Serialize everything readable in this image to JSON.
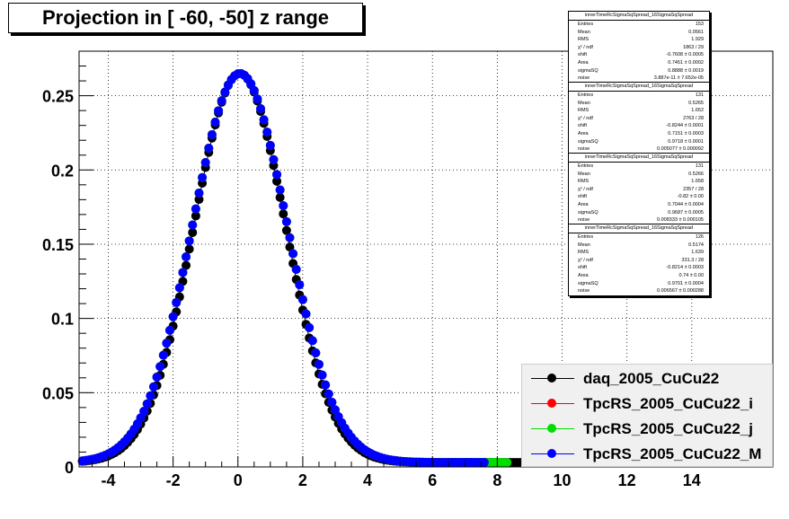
{
  "title": "Projection in [ -60, -50] z range",
  "chart_data": {
    "type": "scatter",
    "xlim": [
      -4.9,
      16.5
    ],
    "ylim": [
      0,
      0.28
    ],
    "x_ticks": [
      -4,
      -2,
      0,
      2,
      4,
      6,
      8,
      10,
      12,
      14
    ],
    "x_tick_labels": [
      "-4",
      "-2",
      "0",
      "2",
      "4",
      "6",
      "8",
      "10",
      "12",
      "14"
    ],
    "y_ticks": [
      0,
      0.05,
      0.1,
      0.15,
      0.2,
      0.25
    ],
    "y_tick_labels": [
      "0",
      "0.05",
      "0.1",
      "0.15",
      "0.2",
      "0.25"
    ],
    "grid": true,
    "legend_position": "bottom-right",
    "series": [
      {
        "name": "daq_2005_CuCu22",
        "color": "#000000",
        "mean": 0.0561,
        "sigma": 1.42,
        "peak": 0.265,
        "x_start": -4.8,
        "x_end": 9.4,
        "step": 0.1
      },
      {
        "name": "TpcRS_2005_CuCu22_i",
        "color": "#ff0000",
        "mean": 0.06,
        "sigma": 1.47,
        "peak": 0.265,
        "x_start": -4.8,
        "x_end": 7.6,
        "step": 0.1
      },
      {
        "name": "TpcRS_2005_CuCu22_j",
        "color": "#00dd00",
        "mean": 0.06,
        "sigma": 1.47,
        "peak": 0.265,
        "x_start": -4.8,
        "x_end": 8.3,
        "step": 0.1
      },
      {
        "name": "TpcRS_2005_CuCu22_M",
        "color": "#0000ff",
        "mean": 0.06,
        "sigma": 1.47,
        "peak": 0.265,
        "x_start": -4.8,
        "x_end": 7.6,
        "step": 0.1
      }
    ]
  },
  "stats_boxes": [
    {
      "title": "innerTimeRcSigmaSqSpread_16SigmaSqSpread",
      "rows": [
        [
          "Entries",
          "153"
        ],
        [
          "Mean",
          "0.0561"
        ],
        [
          "RMS",
          "1.929"
        ],
        [
          "χ² / ndf",
          "1863 / 29"
        ],
        [
          "shift",
          "-0.7608 ± 0.0005"
        ],
        [
          "Area",
          "0.7451 ± 0.0002"
        ],
        [
          "sigmaSQ",
          "0.8888 ± 0.0019"
        ],
        [
          "noise",
          "3.887e-11 ± 7.652e-05"
        ]
      ]
    },
    {
      "title": "innerTimeRcSigmaSqSpread_16SigmaSqSpread",
      "rows": [
        [
          "Entries",
          "131"
        ],
        [
          "Mean",
          "0.5265"
        ],
        [
          "RMS",
          "1.652"
        ],
        [
          "χ² / ndf",
          "2763 / 28"
        ],
        [
          "shift",
          "-0.8244 ± 0.0001"
        ],
        [
          "Area",
          "0.7151 ± 0.0003"
        ],
        [
          "sigmaSQ",
          "0.9718 ± 0.0001"
        ],
        [
          "noise",
          "0.005077 ± 0.000092"
        ]
      ]
    },
    {
      "title": "innerTimeRcSigmaSqSpread_16SigmaSqSpread",
      "rows": [
        [
          "Entries",
          "131"
        ],
        [
          "Mean",
          "0.5266"
        ],
        [
          "RMS",
          "1.658"
        ],
        [
          "χ² / ndf",
          "2357 / 28"
        ],
        [
          "shift",
          "-0.82 ± 0.00"
        ],
        [
          "Area",
          "0.7044 ± 0.0004"
        ],
        [
          "sigmaSQ",
          "0.9687 ± 0.0005"
        ],
        [
          "noise",
          "0.008333 ± 0.000105"
        ]
      ]
    },
    {
      "title": "innerTimeRcSigmaSqSpread_16SigmaSqSpread",
      "rows": [
        [
          "Entries",
          "126"
        ],
        [
          "Mean",
          "0.5174"
        ],
        [
          "RMS",
          "1.639"
        ],
        [
          "χ² / ndf",
          "331.3 / 28"
        ],
        [
          "shift",
          "-0.8214 ± 0.0003"
        ],
        [
          "Area",
          "0.74 ± 0.00"
        ],
        [
          "sigmaSQ",
          "0.9701 ± 0.0004"
        ],
        [
          "noise",
          "0.006567 ± 0.000288"
        ]
      ]
    }
  ]
}
